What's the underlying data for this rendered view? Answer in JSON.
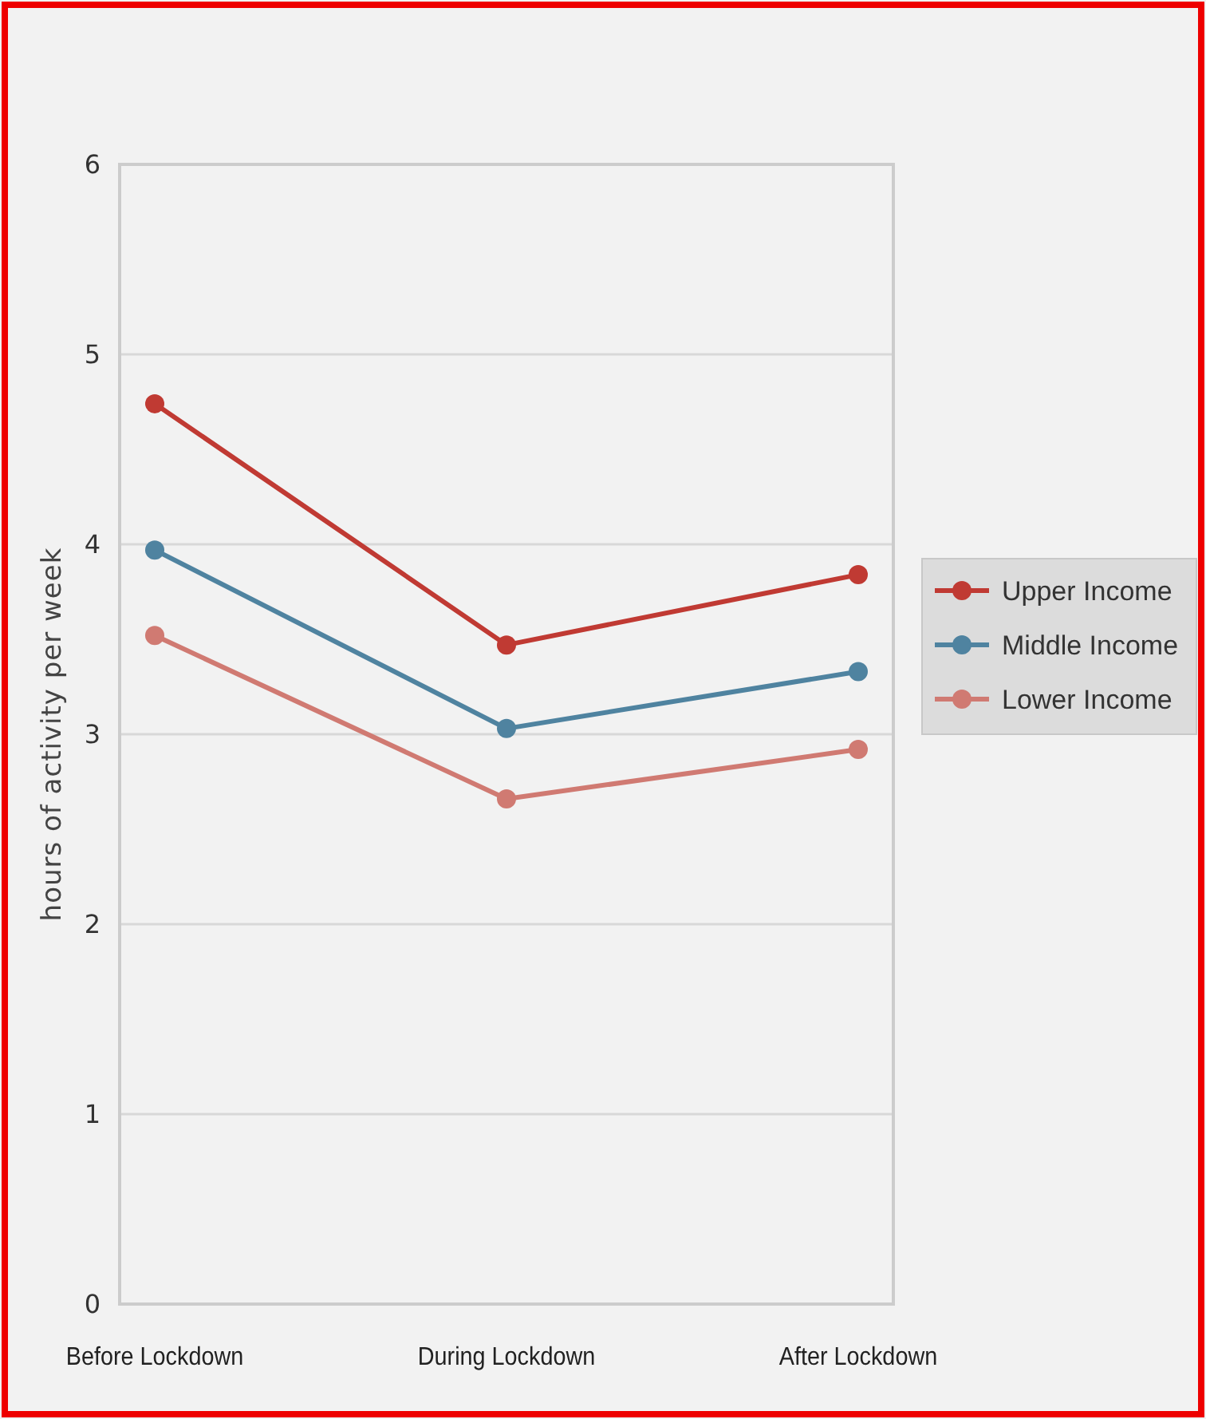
{
  "chart_data": {
    "type": "line",
    "ylabel": "hours of activity per week",
    "categories": [
      "Before Lockdown",
      "During Lockdown",
      "After Lockdown"
    ],
    "series": [
      {
        "name": "Upper Income",
        "color": "#c03a33",
        "values": [
          4.74,
          3.47,
          3.84
        ]
      },
      {
        "name": "Middle Income",
        "color": "#4f83a0",
        "values": [
          3.97,
          3.03,
          3.33
        ]
      },
      {
        "name": "Lower Income",
        "color": "#d07a72",
        "values": [
          3.52,
          2.66,
          2.92
        ]
      }
    ],
    "ylim": [
      0,
      6
    ],
    "yticks": [
      0,
      1,
      2,
      3,
      4,
      5,
      6
    ],
    "grid": "y",
    "legend": "right",
    "marker": "circle",
    "line_style": "solid"
  }
}
